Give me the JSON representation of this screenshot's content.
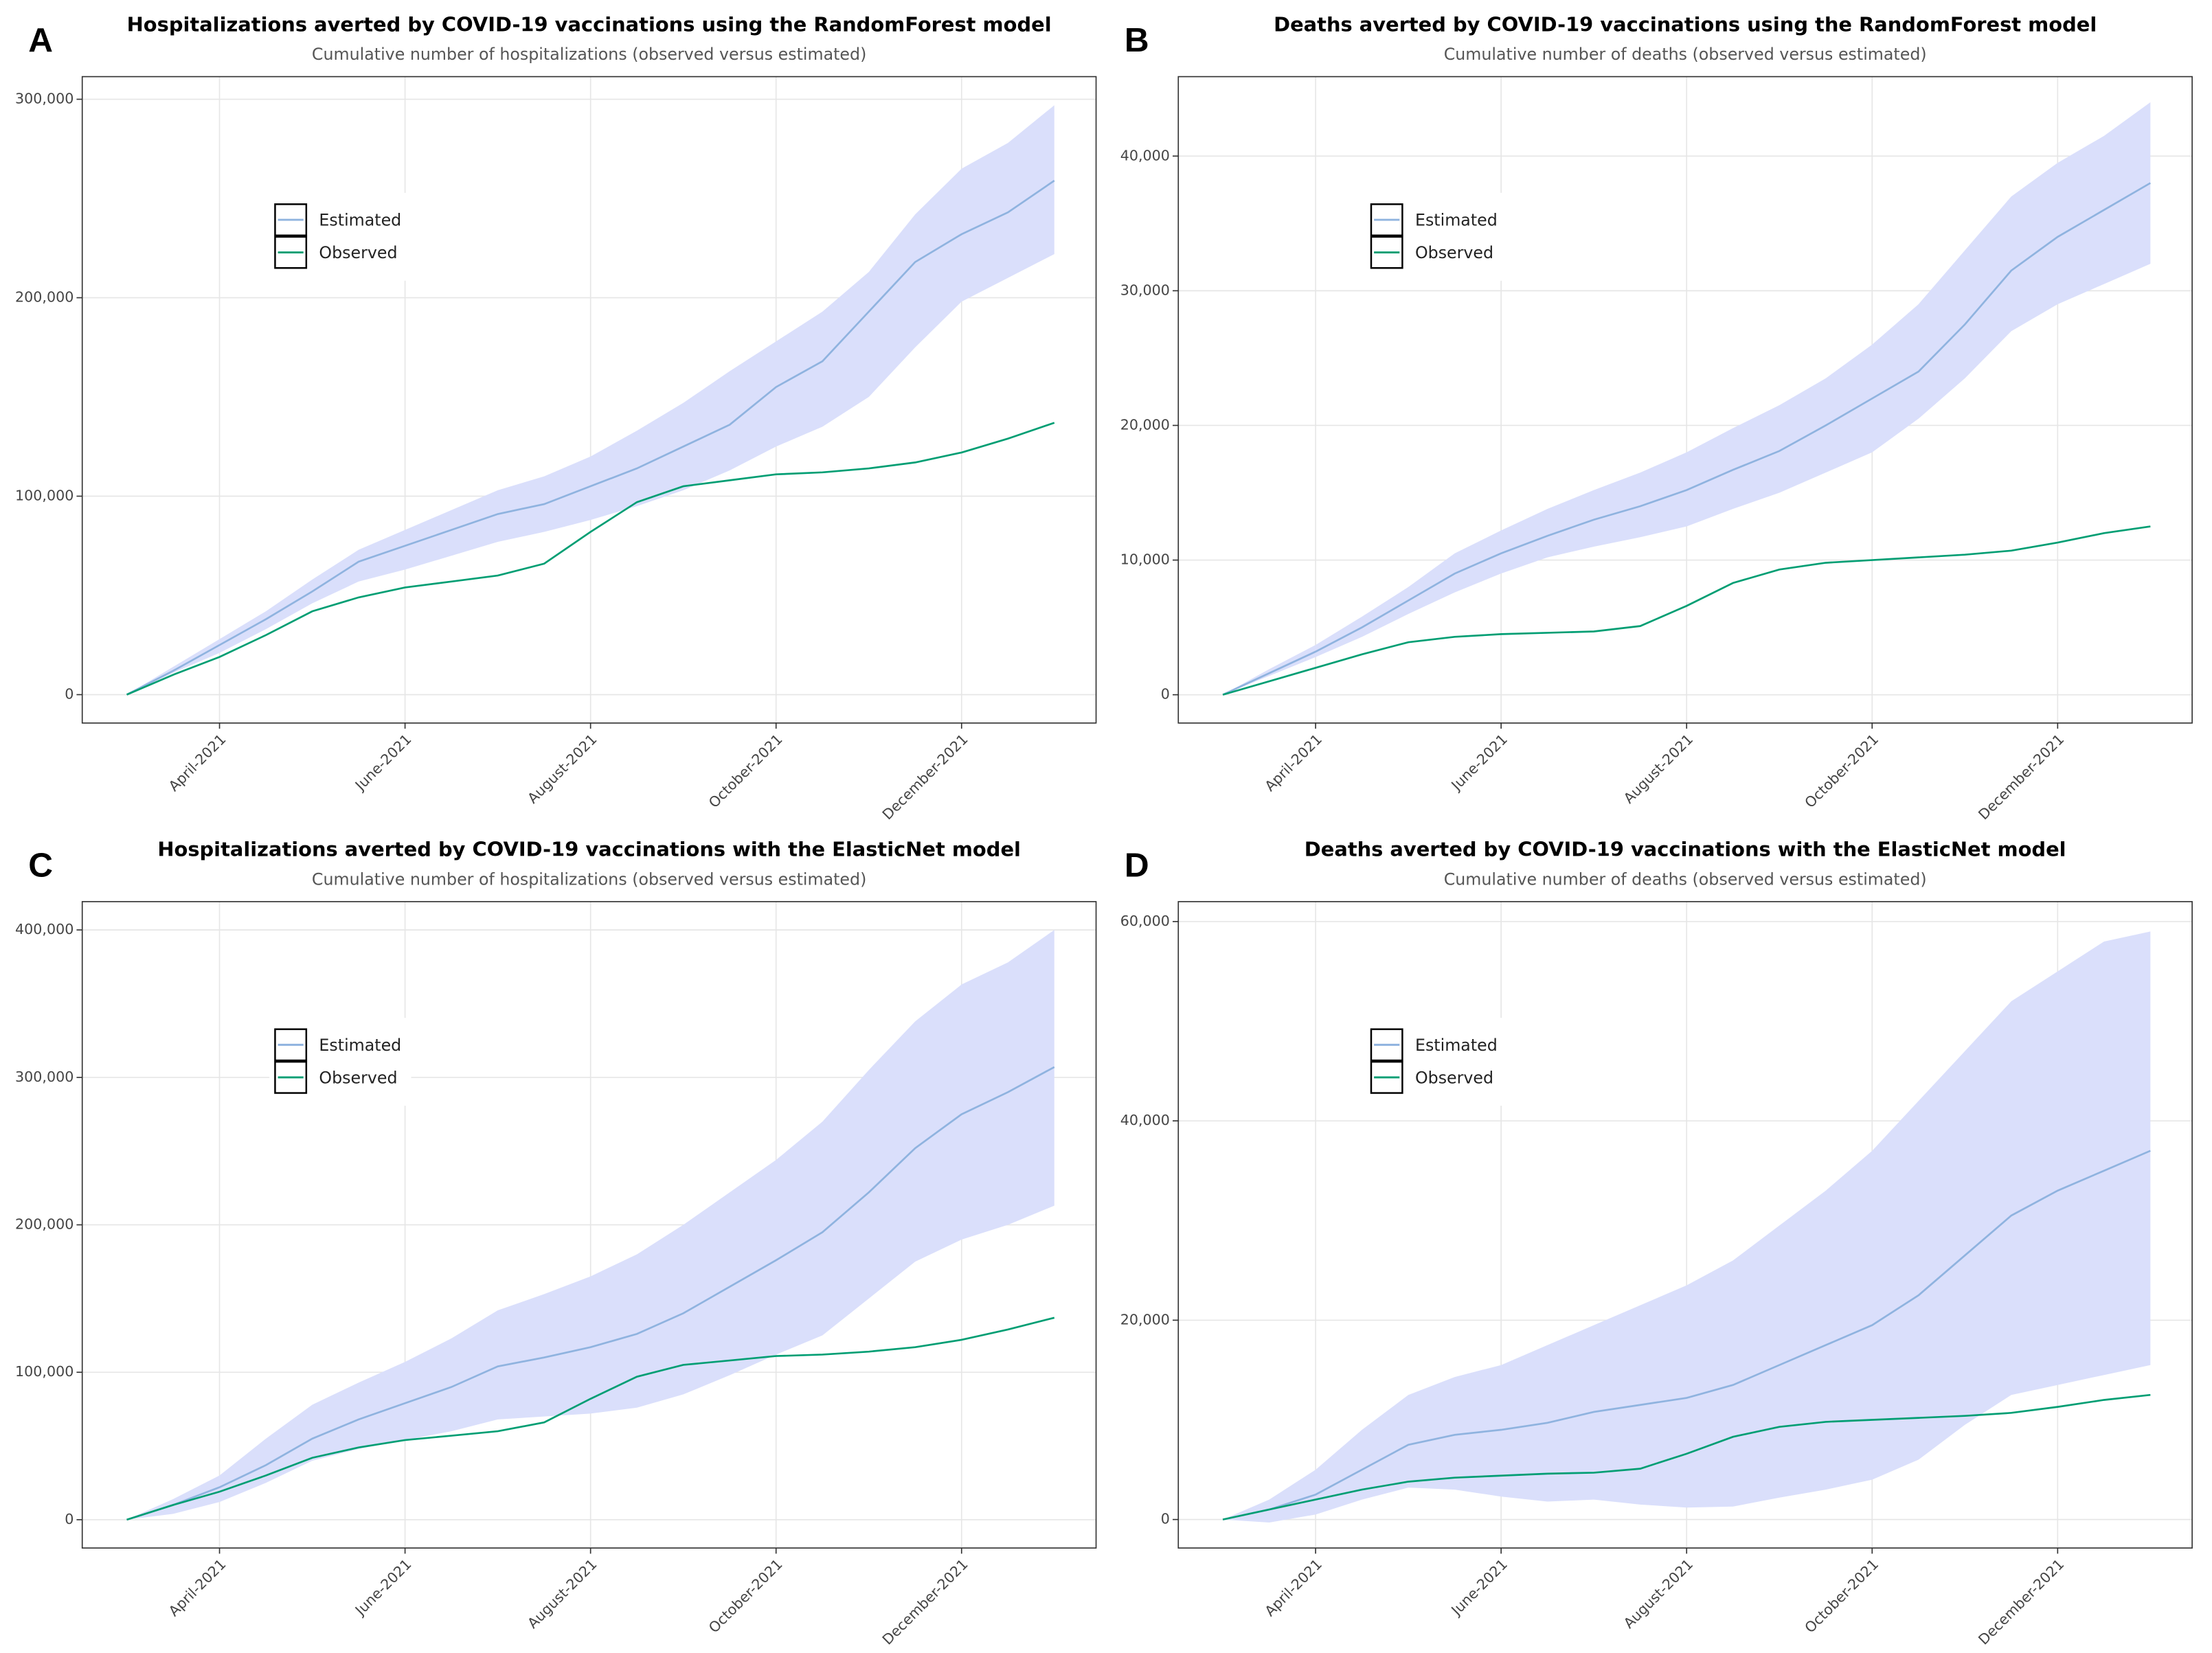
{
  "chart_data": [
    {
      "type": "line",
      "panel_label": "A",
      "title": "Hospitalizations averted by COVID-19 vaccinations using the RandomForest model",
      "subtitle": "Cumulative number of hospitalizations (observed versus estimated)",
      "legend_position": "inside-top-left",
      "grid": true,
      "x": [
        3,
        3.5,
        4,
        4.5,
        5,
        5.5,
        6,
        6.5,
        7,
        7.5,
        8,
        8.5,
        9,
        9.5,
        10,
        10.5,
        11,
        11.5,
        12,
        12.5,
        13
      ],
      "xlim": [
        2.52,
        13.45
      ],
      "xticks": [
        {
          "value": 4,
          "label": "April-2021"
        },
        {
          "value": 6,
          "label": "June-2021"
        },
        {
          "value": 8,
          "label": "August-2021"
        },
        {
          "value": 10,
          "label": "October-2021"
        },
        {
          "value": 12,
          "label": "December-2021"
        }
      ],
      "ylim": [
        -14300,
        311400
      ],
      "yticks": [
        0,
        {
          "value": 100000,
          "label": "100,000"
        },
        {
          "value": 200000,
          "label": "200,000"
        },
        {
          "value": 300000,
          "label": "300,000"
        }
      ],
      "series": [
        {
          "name": "Estimated",
          "color": "#8fb3df",
          "band_color": "#dadffb",
          "values": [
            0,
            12000,
            25000,
            38000,
            52000,
            67000,
            75000,
            83000,
            91000,
            96000,
            105000,
            114000,
            125000,
            136000,
            155000,
            168000,
            193000,
            218000,
            232000,
            243000,
            259000
          ],
          "ci_upper": [
            0,
            14000,
            28000,
            42000,
            58000,
            73000,
            83000,
            93000,
            103000,
            110000,
            120000,
            133000,
            147000,
            163000,
            178000,
            193000,
            213000,
            242000,
            265000,
            278000,
            297000
          ],
          "ci_lower": [
            0,
            11000,
            21000,
            33000,
            46000,
            57000,
            63000,
            70000,
            77000,
            82000,
            88000,
            95000,
            103000,
            113000,
            125000,
            135000,
            150000,
            175000,
            198000,
            210000,
            222000
          ]
        },
        {
          "name": "Observed",
          "color": "#009e73",
          "values": [
            0,
            10000,
            19000,
            30000,
            42000,
            49000,
            54000,
            57000,
            60000,
            66000,
            82000,
            97000,
            105000,
            108000,
            111000,
            112000,
            114000,
            117000,
            122000,
            129000,
            137000
          ]
        }
      ]
    },
    {
      "type": "line",
      "panel_label": "B",
      "title": "Deaths averted by COVID-19 vaccinations using the RandomForest model",
      "subtitle": "Cumulative number of deaths (observed versus estimated)",
      "legend_position": "inside-top-left",
      "grid": true,
      "x": [
        3,
        3.5,
        4,
        4.5,
        5,
        5.5,
        6,
        6.5,
        7,
        7.5,
        8,
        8.5,
        9,
        9.5,
        10,
        10.5,
        11,
        11.5,
        12,
        12.5,
        13
      ],
      "xlim": [
        2.52,
        13.45
      ],
      "xticks": [
        {
          "value": 4,
          "label": "April-2021"
        },
        {
          "value": 6,
          "label": "June-2021"
        },
        {
          "value": 8,
          "label": "August-2021"
        },
        {
          "value": 10,
          "label": "October-2021"
        },
        {
          "value": 12,
          "label": "December-2021"
        }
      ],
      "ylim": [
        -2100,
        45900
      ],
      "yticks": [
        0,
        {
          "value": 10000,
          "label": "10,000"
        },
        {
          "value": 20000,
          "label": "20,000"
        },
        {
          "value": 30000,
          "label": "30,000"
        },
        {
          "value": 40000,
          "label": "40,000"
        }
      ],
      "series": [
        {
          "name": "Estimated",
          "color": "#8fb3df",
          "band_color": "#dadffb",
          "values": [
            0,
            1600,
            3200,
            5000,
            7000,
            9000,
            10500,
            11800,
            13000,
            14000,
            15200,
            16700,
            18100,
            20000,
            22000,
            24000,
            27500,
            31500,
            34000,
            36000,
            38000
          ],
          "ci_upper": [
            0,
            1900,
            3700,
            5800,
            8000,
            10500,
            12200,
            13800,
            15200,
            16500,
            18000,
            19800,
            21500,
            23500,
            26000,
            29000,
            33000,
            37000,
            39500,
            41500,
            44000
          ],
          "ci_lower": [
            0,
            1400,
            2800,
            4300,
            6000,
            7600,
            9000,
            10200,
            11000,
            11700,
            12500,
            13800,
            15000,
            16500,
            18000,
            20500,
            23500,
            27000,
            29000,
            30500,
            32000
          ]
        },
        {
          "name": "Observed",
          "color": "#009e73",
          "values": [
            0,
            1000,
            2000,
            3000,
            3900,
            4300,
            4500,
            4600,
            4700,
            5100,
            6600,
            8300,
            9300,
            9800,
            10000,
            10200,
            10400,
            10700,
            11300,
            12000,
            12500
          ]
        }
      ]
    },
    {
      "type": "line",
      "panel_label": "C",
      "title": "Hospitalizations averted by COVID-19 vaccinations with the ElasticNet model",
      "subtitle": "Cumulative number of hospitalizations (observed versus estimated)",
      "legend_position": "inside-top-left",
      "grid": true,
      "x": [
        3,
        3.5,
        4,
        4.5,
        5,
        5.5,
        6,
        6.5,
        7,
        7.5,
        8,
        8.5,
        9,
        9.5,
        10,
        10.5,
        11,
        11.5,
        12,
        12.5,
        13
      ],
      "xlim": [
        2.52,
        13.45
      ],
      "xticks": [
        {
          "value": 4,
          "label": "April-2021"
        },
        {
          "value": 6,
          "label": "June-2021"
        },
        {
          "value": 8,
          "label": "August-2021"
        },
        {
          "value": 10,
          "label": "October-2021"
        },
        {
          "value": 12,
          "label": "December-2021"
        }
      ],
      "ylim": [
        -19200,
        419200
      ],
      "yticks": [
        0,
        {
          "value": 100000,
          "label": "100,000"
        },
        {
          "value": 200000,
          "label": "200,000"
        },
        {
          "value": 300000,
          "label": "300,000"
        },
        {
          "value": 400000,
          "label": "400,000"
        }
      ],
      "series": [
        {
          "name": "Estimated",
          "color": "#8fb3df",
          "band_color": "#dadffb",
          "values": [
            0,
            10000,
            22000,
            37000,
            55000,
            68000,
            79000,
            90000,
            104000,
            110000,
            117000,
            126000,
            140000,
            158000,
            176000,
            195000,
            222000,
            252000,
            275000,
            290000,
            307000
          ],
          "ci_upper": [
            0,
            14000,
            30000,
            55000,
            78000,
            93000,
            107000,
            123000,
            142000,
            153000,
            165000,
            180000,
            200000,
            222000,
            244000,
            270000,
            305000,
            338000,
            363000,
            378000,
            400000
          ],
          "ci_lower": [
            0,
            4000,
            12000,
            25000,
            40000,
            48000,
            54000,
            60000,
            68000,
            70000,
            72000,
            76000,
            85000,
            98000,
            112000,
            125000,
            150000,
            175000,
            190000,
            200000,
            213000
          ]
        },
        {
          "name": "Observed",
          "color": "#009e73",
          "values": [
            0,
            10000,
            19000,
            30000,
            42000,
            49000,
            54000,
            57000,
            60000,
            66000,
            82000,
            97000,
            105000,
            108000,
            111000,
            112000,
            114000,
            117000,
            122000,
            129000,
            137000
          ]
        }
      ]
    },
    {
      "type": "line",
      "panel_label": "D",
      "title": "Deaths averted by COVID-19 vaccinations with the ElasticNet model",
      "subtitle": "Cumulative number of deaths (observed versus estimated)",
      "legend_position": "inside-top-left",
      "grid": true,
      "x": [
        3,
        3.5,
        4,
        4.5,
        5,
        5.5,
        6,
        6.5,
        7,
        7.5,
        8,
        8.5,
        9,
        9.5,
        10,
        10.5,
        11,
        11.5,
        12,
        12.5,
        13
      ],
      "xlim": [
        2.52,
        13.45
      ],
      "xticks": [
        {
          "value": 4,
          "label": "April-2021"
        },
        {
          "value": 6,
          "label": "June-2021"
        },
        {
          "value": 8,
          "label": "August-2021"
        },
        {
          "value": 10,
          "label": "October-2021"
        },
        {
          "value": 12,
          "label": "December-2021"
        }
      ],
      "ylim": [
        -2860,
        62000
      ],
      "yticks": [
        0,
        {
          "value": 20000,
          "label": "20,000"
        },
        {
          "value": 40000,
          "label": "40,000"
        },
        {
          "value": 60000,
          "label": "60,000"
        }
      ],
      "series": [
        {
          "name": "Estimated",
          "color": "#8fb3df",
          "band_color": "#dadffb",
          "values": [
            0,
            1000,
            2500,
            5000,
            7500,
            8500,
            9000,
            9700,
            10800,
            11500,
            12200,
            13500,
            15500,
            17500,
            19500,
            22500,
            26500,
            30500,
            33000,
            35000,
            37000
          ],
          "ci_upper": [
            0,
            2000,
            5000,
            9000,
            12500,
            14300,
            15500,
            17500,
            19500,
            21500,
            23500,
            26000,
            29500,
            33000,
            37000,
            42000,
            47000,
            52000,
            55000,
            58000,
            59000
          ],
          "ci_lower": [
            0,
            -300,
            500,
            2000,
            3200,
            3000,
            2300,
            1800,
            2000,
            1500,
            1200,
            1300,
            2200,
            3000,
            4000,
            6000,
            9500,
            12500,
            13500,
            14500,
            15500
          ]
        },
        {
          "name": "Observed",
          "color": "#009e73",
          "values": [
            0,
            1000,
            2000,
            3000,
            3800,
            4200,
            4400,
            4600,
            4700,
            5100,
            6600,
            8300,
            9300,
            9800,
            10000,
            10200,
            10400,
            10700,
            11300,
            12000,
            12500
          ]
        }
      ]
    }
  ]
}
